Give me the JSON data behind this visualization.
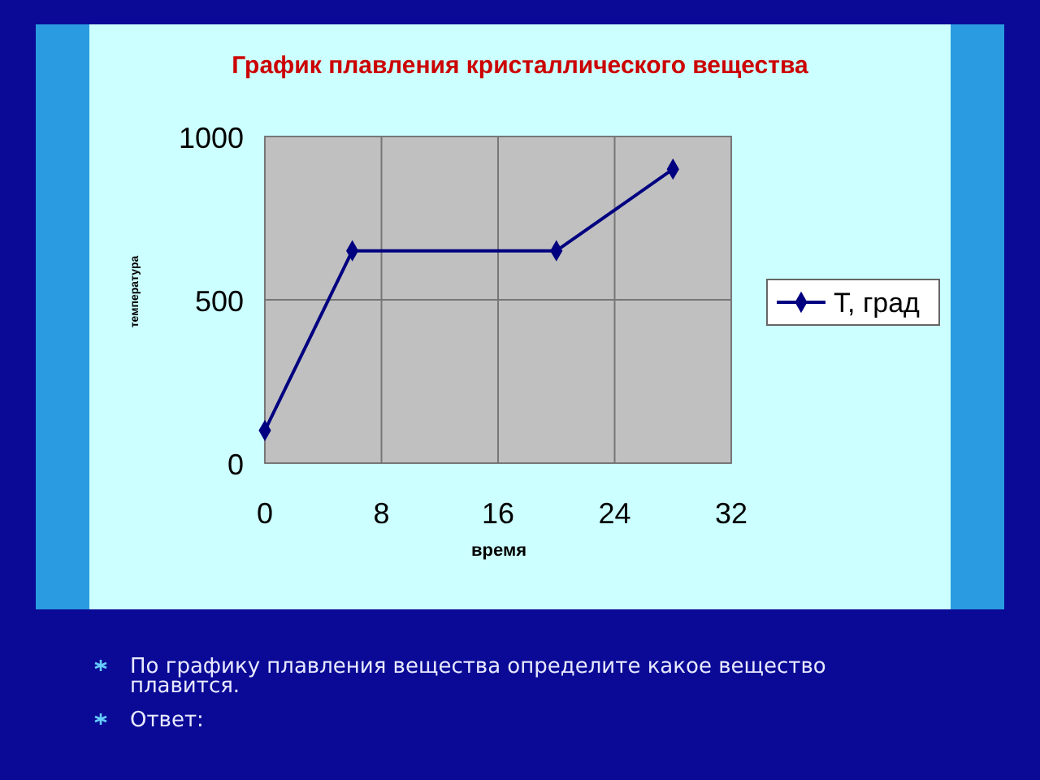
{
  "chart_data": {
    "type": "line",
    "title": "График плавления кристаллического вещества",
    "xlabel": "время",
    "ylabel": "температура",
    "x": [
      0,
      6,
      20,
      28
    ],
    "series": [
      {
        "name": "T, град",
        "color": "#000080",
        "values": [
          100,
          650,
          650,
          900
        ]
      }
    ],
    "xlim": [
      0,
      32
    ],
    "xticks": [
      0,
      8,
      16,
      24,
      32
    ],
    "ylim": [
      0,
      1000
    ],
    "yticks": [
      0,
      500,
      1000
    ],
    "grid": true,
    "legend": "right",
    "marker": "diamond",
    "line_style": "solid",
    "annotations": [
      "По графику плавления вещества определите какое вещество плавится.",
      "Ответ:"
    ]
  }
}
